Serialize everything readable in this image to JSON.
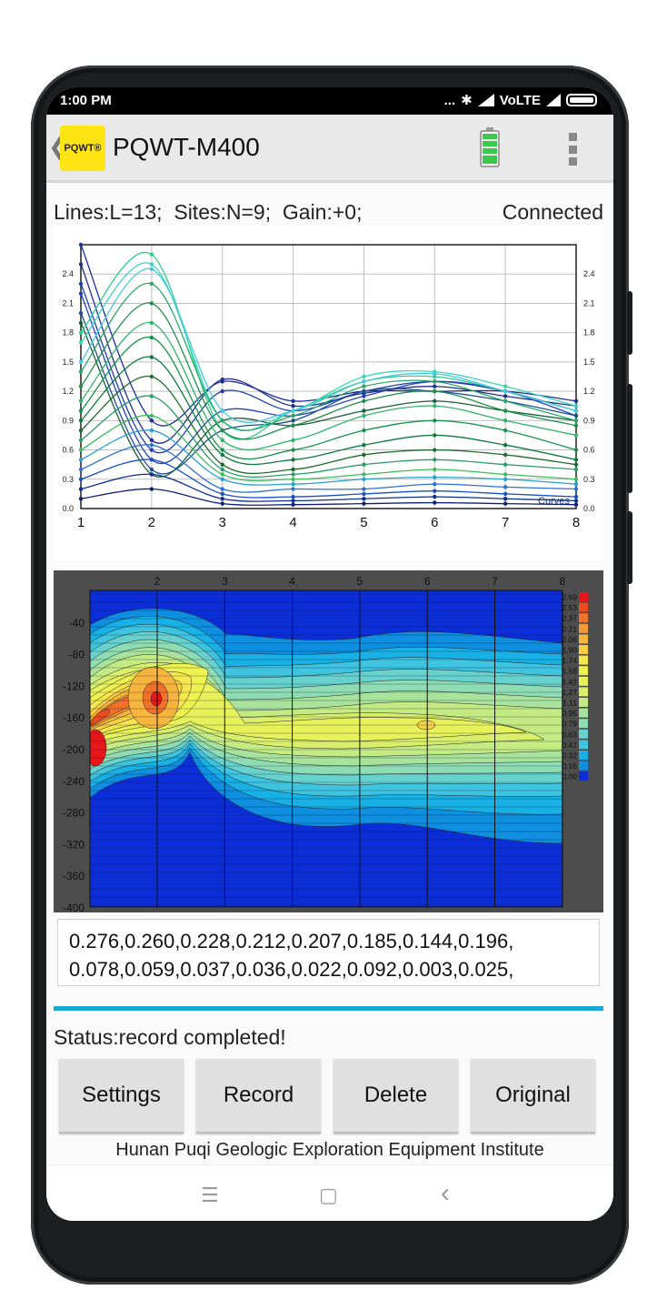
{
  "status_bar": {
    "time": "1:00 PM",
    "network": "VoLTE",
    "dots": "..."
  },
  "app": {
    "title": "PQWT-M400",
    "logo_text": "PQWT®"
  },
  "info": {
    "lines": "Lines:L=13;",
    "sites": "Sites:N=9;",
    "gain": "Gain:+0;",
    "connection": "Connected"
  },
  "chart_data": [
    {
      "type": "line",
      "x": [
        1,
        2,
        3,
        4,
        5,
        6,
        7,
        8
      ],
      "xlim": [
        1,
        8
      ],
      "ylim": [
        0,
        2.7
      ],
      "y_ticks": [
        "0.0",
        "0.3",
        "0.6",
        "0.9",
        "1.2",
        "1.5",
        "1.8",
        "2.1",
        "2.4"
      ],
      "x_ticks": [
        "1",
        "2",
        "3",
        "4",
        "5",
        "6",
        "7",
        "8"
      ],
      "annotation": "Curves",
      "series": [
        {
          "values": [
            2.7,
            0.9,
            1.3,
            1.1,
            1.2,
            1.2,
            1.2,
            1.1
          ],
          "color": "#1a2f9a"
        },
        {
          "values": [
            2.5,
            0.7,
            1.32,
            1.05,
            1.18,
            1.25,
            1.15,
            1.05
          ],
          "color": "#20308a"
        },
        {
          "values": [
            2.3,
            0.6,
            1.2,
            1.0,
            1.2,
            1.3,
            1.2,
            1.0
          ],
          "color": "#1c3fae"
        },
        {
          "values": [
            2.2,
            0.5,
            1.0,
            0.95,
            1.15,
            1.3,
            1.2,
            0.95
          ],
          "color": "#2342c0"
        },
        {
          "values": [
            2.0,
            0.4,
            0.8,
            0.9,
            1.2,
            1.2,
            1.1,
            0.95
          ],
          "color": "#1d4f8d"
        },
        {
          "values": [
            1.9,
            0.35,
            0.9,
            0.85,
            1.0,
            1.1,
            1.0,
            0.9
          ],
          "color": "#1b5e3a"
        },
        {
          "values": [
            1.8,
            2.6,
            0.8,
            1.0,
            1.3,
            1.35,
            1.2,
            1.0
          ],
          "color": "#2bd08a"
        },
        {
          "values": [
            1.7,
            2.5,
            0.9,
            1.0,
            1.35,
            1.4,
            1.25,
            1.05
          ],
          "color": "#3ad6b8"
        },
        {
          "values": [
            1.5,
            2.45,
            1.0,
            1.0,
            1.3,
            1.38,
            1.2,
            1.0
          ],
          "color": "#45c8e0"
        },
        {
          "values": [
            1.4,
            2.3,
            0.9,
            0.95,
            1.25,
            1.3,
            1.1,
            0.9
          ],
          "color": "#2aa86a"
        },
        {
          "values": [
            1.25,
            2.1,
            0.8,
            0.85,
            1.1,
            1.2,
            1.0,
            0.85
          ],
          "color": "#1f8f4a"
        },
        {
          "values": [
            1.1,
            1.9,
            0.7,
            0.7,
            0.95,
            1.05,
            0.9,
            0.75
          ],
          "color": "#2fb56a"
        },
        {
          "values": [
            1.0,
            1.75,
            0.6,
            0.6,
            0.8,
            0.9,
            0.8,
            0.6
          ],
          "color": "#14934a"
        },
        {
          "values": [
            0.9,
            1.55,
            0.55,
            0.5,
            0.65,
            0.75,
            0.65,
            0.5
          ],
          "color": "#0e7a3e"
        },
        {
          "values": [
            0.8,
            1.35,
            0.45,
            0.4,
            0.55,
            0.6,
            0.55,
            0.45
          ],
          "color": "#1e6b2a"
        },
        {
          "values": [
            0.7,
            1.15,
            0.4,
            0.35,
            0.45,
            0.5,
            0.45,
            0.4
          ],
          "color": "#2a9c6a"
        },
        {
          "values": [
            0.6,
            0.95,
            0.35,
            0.3,
            0.35,
            0.4,
            0.35,
            0.3
          ],
          "color": "#3bbd5a"
        },
        {
          "values": [
            0.5,
            0.8,
            0.3,
            0.25,
            0.3,
            0.32,
            0.3,
            0.25
          ],
          "color": "#24a0d0"
        },
        {
          "values": [
            0.4,
            0.65,
            0.2,
            0.2,
            0.2,
            0.25,
            0.22,
            0.2
          ],
          "color": "#2d6fd0"
        },
        {
          "values": [
            0.3,
            0.5,
            0.15,
            0.12,
            0.15,
            0.18,
            0.15,
            0.12
          ],
          "color": "#1750c0"
        },
        {
          "values": [
            0.2,
            0.35,
            0.1,
            0.08,
            0.1,
            0.12,
            0.1,
            0.08
          ],
          "color": "#0f2e8c"
        },
        {
          "values": [
            0.1,
            0.2,
            0.05,
            0.04,
            0.05,
            0.06,
            0.05,
            0.04
          ],
          "color": "#102070"
        }
      ]
    },
    {
      "type": "heatmap",
      "x_ticks": [
        "2",
        "3",
        "4",
        "5",
        "6",
        "7",
        "8"
      ],
      "y_ticks": [
        "-40",
        "-80",
        "-120",
        "-160",
        "-200",
        "-240",
        "-280",
        "-320",
        "-360",
        "-400"
      ],
      "ylim": [
        -400,
        0
      ],
      "colorbar": [
        "2.69",
        "2.53",
        "2.37",
        "2.21",
        "2.06",
        "1.90",
        "1.74",
        "1.58",
        "1.42",
        "1.27",
        "1.11",
        "0.95",
        "0.79",
        "0.63",
        "0.47",
        "0.32",
        "0.16",
        "0.00"
      ],
      "colorbar_colors": [
        "#e8171a",
        "#ef4a1c",
        "#f2712a",
        "#f59837",
        "#f7b53e",
        "#f8d145",
        "#f6e64c",
        "#eef14e",
        "#e7f25a",
        "#d9ef6c",
        "#c4ea83",
        "#a8e39c",
        "#8ddcb3",
        "#67d1cd",
        "#3ec4de",
        "#17b1e6",
        "#0e8fe0",
        "#0c2ed8"
      ]
    }
  ],
  "data_readout": {
    "line1": "0.276,0.260,0.228,0.212,0.207,0.185,0.144,0.196,",
    "line2": "0.078,0.059,0.037,0.036,0.022,0.092,0.003,0.025,"
  },
  "status": {
    "text": "Status:record completed!"
  },
  "buttons": {
    "settings": "Settings",
    "record": "Record",
    "delete": "Delete",
    "original": "Original"
  },
  "footer": {
    "text": "Hunan Puqi Geologic Exploration Equipment Institute"
  },
  "navbar": {
    "menu": "☰",
    "home": "▢",
    "back": "‹"
  }
}
